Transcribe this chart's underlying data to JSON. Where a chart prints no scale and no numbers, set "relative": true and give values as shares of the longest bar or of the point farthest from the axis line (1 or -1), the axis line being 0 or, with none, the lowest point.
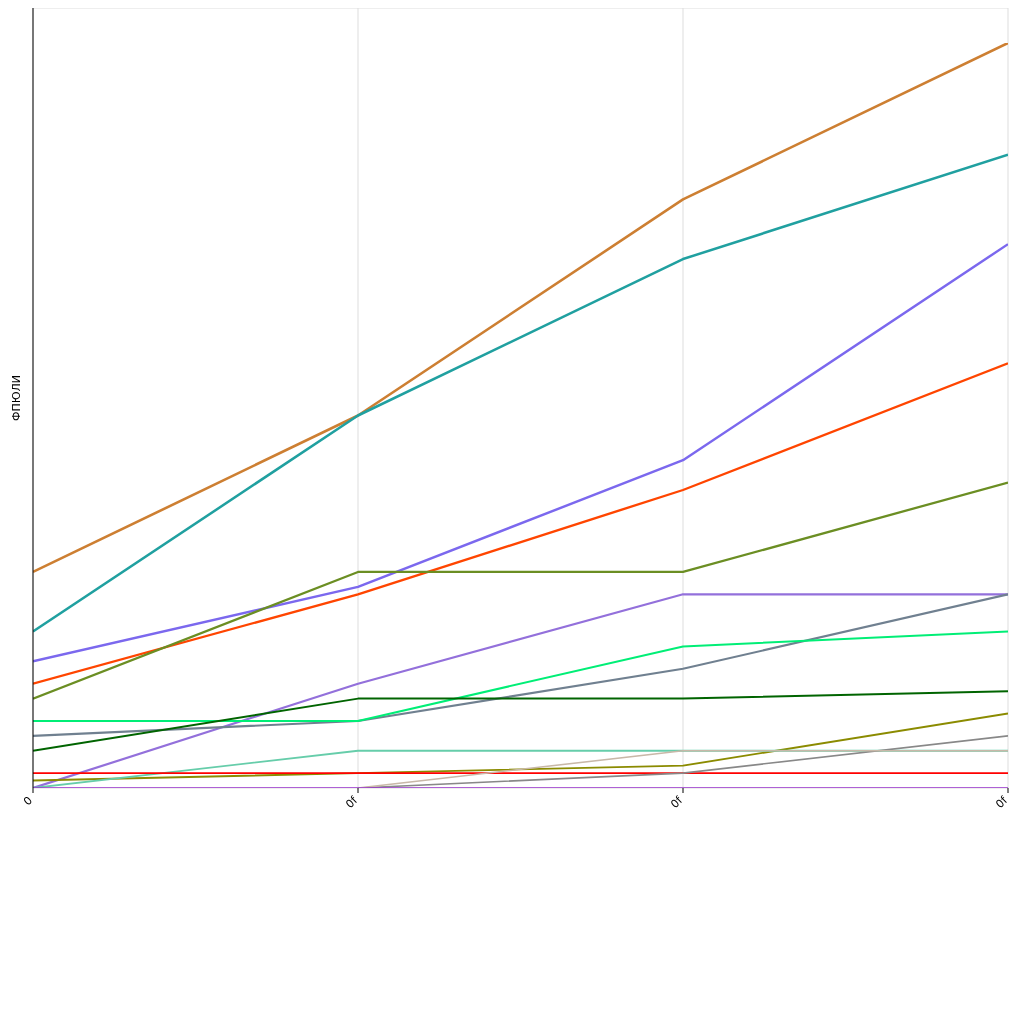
{
  "chart_data": {
    "type": "line",
    "ylabel": "ФПЮЛИ",
    "categories": [
      "0",
      "0f",
      "0f",
      "0f"
    ],
    "relative": true,
    "grid": true,
    "legend": false,
    "marker": "none",
    "line_style": "solid",
    "series": [
      {
        "color": "#cd7f32",
        "values": [
          0.29,
          0.5,
          0.79,
          1
        ]
      },
      {
        "color": "#20a0a0",
        "values": [
          0.21,
          0.5,
          0.71,
          0.85
        ]
      },
      {
        "color": "#7b68ee",
        "values": [
          0.17,
          0.27,
          0.44,
          0.73
        ]
      },
      {
        "color": "#ff4500",
        "values": [
          0.14,
          0.26,
          0.4,
          0.57
        ]
      },
      {
        "color": "#6b8e23",
        "values": [
          0.12,
          0.29,
          0.29,
          0.41
        ]
      },
      {
        "color": "#9370db",
        "values": [
          0,
          0.14,
          0.26,
          0.26
        ]
      },
      {
        "color": "#708090",
        "values": [
          0.07,
          0.09,
          0.16,
          0.26
        ]
      },
      {
        "color": "#00ee76",
        "values": [
          0.09,
          0.09,
          0.19,
          0.21
        ]
      },
      {
        "color": "#006400",
        "values": [
          0.05,
          0.12,
          0.12,
          0.13
        ]
      },
      {
        "color": "#8b8b00",
        "values": [
          0.01,
          0.02,
          0.03,
          0.1
        ]
      },
      {
        "color": "#66cdaa",
        "values": [
          0,
          0.05,
          0.05,
          0.05
        ]
      },
      {
        "color": "#ff0000",
        "values": [
          0.02,
          0.02,
          0.02,
          0.02
        ]
      },
      {
        "color": "#888888",
        "values": [
          null,
          0,
          0.02,
          0.07
        ]
      },
      {
        "color": "#c8b8a8",
        "values": [
          null,
          0,
          0.05,
          0.05
        ]
      },
      {
        "color": "#9932cc",
        "values": [
          0,
          0,
          0,
          0
        ]
      }
    ]
  }
}
